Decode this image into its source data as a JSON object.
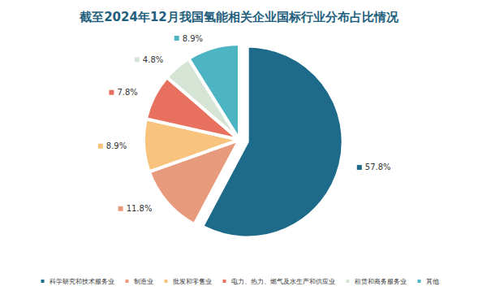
{
  "chart_data": {
    "type": "pie",
    "title": "截至2024年12月我国氢能相关企业国标行业分布占比情况",
    "categories": [
      "科学研究和技术服务业",
      "制造业",
      "批发和零售业",
      "电力、热力、燃气及水生产和供应业",
      "租赁和商务服务业",
      "其他"
    ],
    "values": [
      57.8,
      11.8,
      8.9,
      7.8,
      4.8,
      8.9
    ],
    "value_labels": [
      "57.8%",
      "11.8%",
      "8.9%",
      "7.8%",
      "4.8%",
      "8.9%"
    ],
    "colors": [
      "#1d6a8b",
      "#e89b7c",
      "#f8c37d",
      "#e8705e",
      "#d6e4d6",
      "#4db4c3"
    ],
    "data_labels": true,
    "legend": "bottom"
  }
}
